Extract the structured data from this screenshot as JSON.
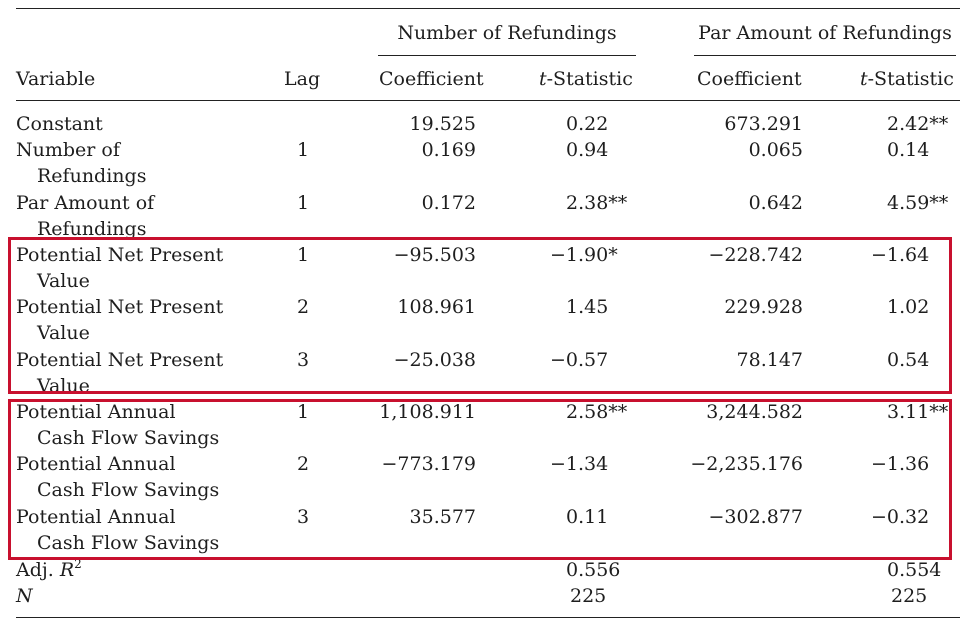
{
  "table": {
    "group_headers": {
      "number": "Number of Refundings",
      "par": "Par Amount of Refundings"
    },
    "columns": {
      "variable": "Variable",
      "lag": "Lag",
      "coef1": "Coefficient",
      "t1_prefix": "t",
      "t1_suffix": "-Statistic",
      "coef2": "Coefficient",
      "t2_prefix": "t",
      "t2_suffix": "-Statistic"
    },
    "rows": [
      {
        "var1": "Constant",
        "var2": "",
        "lag": "",
        "c1": "19.525",
        "t1": "0.22",
        "c2": "673.291",
        "t2": "2.42**"
      },
      {
        "var1": "Number of",
        "var2": "Refundings",
        "lag": "1",
        "c1": "0.169",
        "t1": "0.94",
        "c2": "0.065",
        "t2": "0.14"
      },
      {
        "var1": "Par Amount of",
        "var2": "Refundings",
        "lag": "1",
        "c1": "0.172",
        "t1": "2.38**",
        "c2": "0.642",
        "t2": "4.59**"
      },
      {
        "var1": "Potential Net Present",
        "var2": "Value",
        "lag": "1",
        "c1": "−95.503",
        "t1": "−1.90*",
        "c2": "−228.742",
        "t2": "−1.64"
      },
      {
        "var1": "Potential Net Present",
        "var2": "Value",
        "lag": "2",
        "c1": "108.961",
        "t1": "1.45",
        "c2": "229.928",
        "t2": "1.02"
      },
      {
        "var1": "Potential Net Present",
        "var2": "Value",
        "lag": "3",
        "c1": "−25.038",
        "t1": "−0.57",
        "c2": "78.147",
        "t2": "0.54"
      },
      {
        "var1": "Potential Annual",
        "var2": "Cash Flow Savings",
        "lag": "1",
        "c1": "1,108.911",
        "t1": "2.58**",
        "c2": "3,244.582",
        "t2": "3.11**"
      },
      {
        "var1": "Potential Annual",
        "var2": "Cash Flow Savings",
        "lag": "2",
        "c1": "−773.179",
        "t1": "−1.34",
        "c2": "−2,235.176",
        "t2": "−1.36"
      },
      {
        "var1": "Potential Annual",
        "var2": "Cash Flow Savings",
        "lag": "3",
        "c1": "35.577",
        "t1": "0.11",
        "c2": "−302.877",
        "t2": "−0.32"
      }
    ],
    "footer": {
      "adj_r2_label": "Adj. ",
      "adj_r2_symbol": "R",
      "adj_r2_sup": "2",
      "adj_r2_t1": "0.556",
      "adj_r2_t2": "0.554",
      "n_label": "N",
      "n_t1": "225",
      "n_t2": "225"
    },
    "highlight_color": "#c8102e"
  }
}
